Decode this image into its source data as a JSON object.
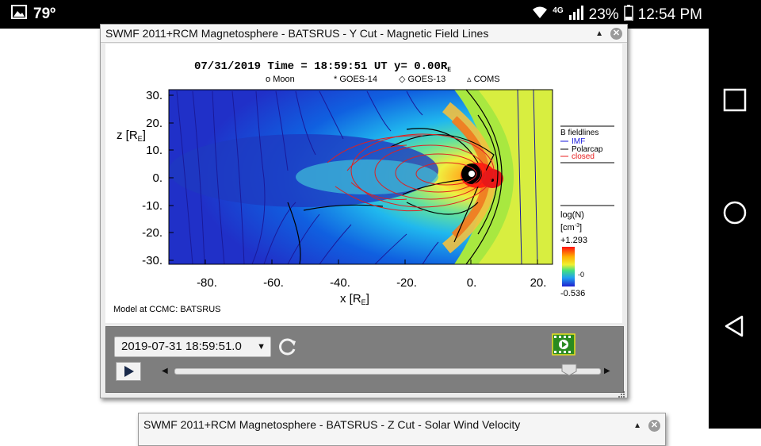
{
  "status_bar": {
    "temperature": "79º",
    "network": "4G",
    "battery": "23%",
    "time": "12:54 PM"
  },
  "window": {
    "title": "SWMF 2011+RCM Magnetosphere - BATSRUS - Y Cut - Magnetic Field Lines",
    "plot": {
      "title": "07/31/2019 Time = 18:59:51 UT y= 0.00R",
      "title_sub": "E",
      "legend_markers": [
        {
          "symbol": "o",
          "label": "Moon"
        },
        {
          "symbol": "*",
          "label": "GOES-14"
        },
        {
          "symbol": "◇",
          "label": "GOES-13"
        },
        {
          "symbol": "▵",
          "label": "COMS"
        }
      ],
      "x_axis": {
        "label": "x [R",
        "label_sub": "E",
        "label_end": "]",
        "ticks": [
          "-80.",
          "-60.",
          "-40.",
          "-20.",
          "0.",
          "20."
        ]
      },
      "y_axis": {
        "label": "z [R",
        "label_sub": "E",
        "label_end": "]",
        "ticks": [
          "30.",
          "20.",
          "10.",
          "0.",
          "-10.",
          "-20.",
          "-30."
        ]
      },
      "fieldline_legend": {
        "title": "B fieldlines",
        "items": [
          {
            "label": "IMF",
            "color": "#1a1adb"
          },
          {
            "label": "Polarcap",
            "color": "#000000"
          },
          {
            "label": "closed",
            "color": "#e82020"
          }
        ]
      },
      "colorbar": {
        "title": "log(N)",
        "unit": "[cm",
        "unit_sup": "-3",
        "unit_end": "]",
        "max": "+1.293",
        "mid": "-0",
        "min": "-0.536"
      },
      "credit": "Model at CCMC: BATSRUS"
    },
    "controls": {
      "date_value": "2019-07-31 18:59:51.0",
      "slider_position": 0.93
    }
  },
  "window2": {
    "title": "SWMF 2011+RCM Magnetosphere - BATSRUS - Z Cut - Solar Wind Velocity"
  }
}
